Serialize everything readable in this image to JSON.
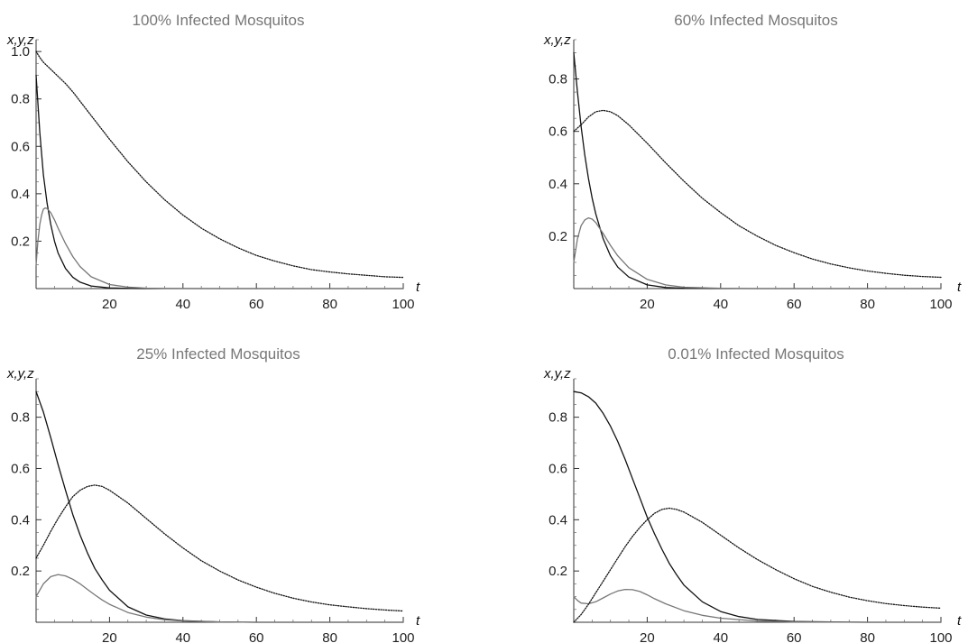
{
  "chart_data": [
    {
      "type": "line",
      "title": "100% Infected Mosquitos",
      "xlabel": "t",
      "ylabel": "x,y,z",
      "xlim": [
        0,
        100
      ],
      "ylim": [
        0,
        1.05
      ],
      "xticks": [
        "20",
        "40",
        "60",
        "80",
        "100"
      ],
      "yticks": [
        "0.2",
        "0.4",
        "0.6",
        "0.8",
        "1.0"
      ],
      "series": [
        {
          "color": "#111111",
          "style": "solid",
          "x": [
            0,
            1,
            2,
            3,
            4,
            5,
            6,
            8,
            10,
            12,
            15,
            20,
            25,
            30,
            40,
            50,
            60,
            70,
            80,
            90,
            100
          ],
          "y": [
            0.9,
            0.66,
            0.48,
            0.36,
            0.27,
            0.2,
            0.15,
            0.085,
            0.048,
            0.027,
            0.011,
            0.0025,
            0.0006,
            0.0001,
            0,
            0,
            0,
            0,
            0,
            0,
            0
          ]
        },
        {
          "color": "#777777",
          "style": "solid",
          "x": [
            0,
            0.5,
            1,
            1.5,
            2,
            2.5,
            3,
            4,
            5,
            6,
            8,
            10,
            12,
            15,
            20,
            25,
            30,
            35,
            40,
            50,
            60,
            80,
            100
          ],
          "y": [
            0.1,
            0.2,
            0.27,
            0.31,
            0.335,
            0.34,
            0.338,
            0.32,
            0.29,
            0.255,
            0.19,
            0.135,
            0.093,
            0.05,
            0.017,
            0.006,
            0.002,
            0.0007,
            0.0002,
            0,
            0,
            0,
            0
          ]
        },
        {
          "color": "#111111",
          "style": "dotted",
          "x": [
            0,
            1,
            2,
            4,
            6,
            8,
            10,
            12,
            15,
            20,
            25,
            30,
            35,
            40,
            45,
            50,
            55,
            60,
            65,
            70,
            75,
            80,
            85,
            90,
            95,
            100
          ],
          "y": [
            1.0,
            0.975,
            0.955,
            0.925,
            0.895,
            0.865,
            0.83,
            0.79,
            0.73,
            0.63,
            0.535,
            0.45,
            0.375,
            0.31,
            0.255,
            0.21,
            0.172,
            0.14,
            0.116,
            0.096,
            0.08,
            0.07,
            0.062,
            0.056,
            0.05,
            0.047
          ]
        }
      ]
    },
    {
      "type": "line",
      "title": "60% Infected Mosquitos",
      "xlabel": "t",
      "ylabel": "x,y,z",
      "xlim": [
        0,
        100
      ],
      "ylim": [
        0,
        0.95
      ],
      "xticks": [
        "20",
        "40",
        "60",
        "80",
        "100"
      ],
      "yticks": [
        "0.2",
        "0.4",
        "0.6",
        "0.8"
      ],
      "series": [
        {
          "color": "#111111",
          "style": "solid",
          "x": [
            0,
            1,
            2,
            3,
            4,
            5,
            6,
            8,
            10,
            12,
            15,
            20,
            25,
            30,
            40,
            50,
            60,
            80,
            100
          ],
          "y": [
            0.9,
            0.75,
            0.62,
            0.51,
            0.42,
            0.345,
            0.285,
            0.19,
            0.125,
            0.082,
            0.044,
            0.014,
            0.004,
            0.0012,
            0.0001,
            0,
            0,
            0,
            0
          ]
        },
        {
          "color": "#777777",
          "style": "solid",
          "x": [
            0,
            1,
            2,
            3,
            4,
            5,
            6,
            8,
            10,
            12,
            15,
            20,
            25,
            30,
            40,
            50,
            60,
            80,
            100
          ],
          "y": [
            0.1,
            0.19,
            0.24,
            0.262,
            0.27,
            0.265,
            0.252,
            0.21,
            0.165,
            0.125,
            0.08,
            0.035,
            0.014,
            0.005,
            0.001,
            0,
            0,
            0,
            0
          ]
        },
        {
          "color": "#111111",
          "style": "dotted",
          "x": [
            0,
            2,
            4,
            6,
            8,
            10,
            12,
            15,
            20,
            25,
            30,
            35,
            40,
            45,
            50,
            55,
            60,
            65,
            70,
            75,
            80,
            85,
            90,
            95,
            100
          ],
          "y": [
            0.6,
            0.625,
            0.655,
            0.675,
            0.68,
            0.675,
            0.66,
            0.625,
            0.555,
            0.48,
            0.41,
            0.345,
            0.29,
            0.24,
            0.2,
            0.165,
            0.137,
            0.113,
            0.094,
            0.079,
            0.067,
            0.058,
            0.051,
            0.046,
            0.043
          ]
        }
      ]
    },
    {
      "type": "line",
      "title": "25% Infected Mosquitos",
      "xlabel": "t",
      "ylabel": "x,y,z",
      "xlim": [
        0,
        100
      ],
      "ylim": [
        0,
        0.95
      ],
      "xticks": [
        "20",
        "40",
        "60",
        "80",
        "100"
      ],
      "yticks": [
        "0.2",
        "0.4",
        "0.6",
        "0.8"
      ],
      "series": [
        {
          "color": "#111111",
          "style": "solid",
          "x": [
            0,
            2,
            4,
            6,
            8,
            10,
            12,
            14,
            16,
            18,
            20,
            25,
            30,
            35,
            40,
            50,
            60,
            80,
            100
          ],
          "y": [
            0.9,
            0.82,
            0.72,
            0.615,
            0.515,
            0.42,
            0.34,
            0.27,
            0.21,
            0.165,
            0.125,
            0.06,
            0.028,
            0.013,
            0.006,
            0.001,
            0,
            0,
            0
          ]
        },
        {
          "color": "#777777",
          "style": "solid",
          "x": [
            0,
            2,
            4,
            6,
            8,
            10,
            12,
            14,
            16,
            18,
            20,
            25,
            30,
            35,
            40,
            50,
            60,
            80,
            100
          ],
          "y": [
            0.1,
            0.15,
            0.178,
            0.186,
            0.181,
            0.168,
            0.15,
            0.128,
            0.107,
            0.087,
            0.07,
            0.038,
            0.02,
            0.01,
            0.005,
            0.001,
            0,
            0,
            0
          ]
        },
        {
          "color": "#111111",
          "style": "dotted",
          "x": [
            0,
            2,
            4,
            6,
            8,
            10,
            12,
            14,
            16,
            18,
            20,
            25,
            30,
            35,
            40,
            45,
            50,
            55,
            60,
            65,
            70,
            75,
            80,
            85,
            90,
            95,
            100
          ],
          "y": [
            0.25,
            0.3,
            0.355,
            0.405,
            0.45,
            0.49,
            0.515,
            0.53,
            0.535,
            0.53,
            0.515,
            0.465,
            0.405,
            0.345,
            0.29,
            0.24,
            0.2,
            0.165,
            0.137,
            0.113,
            0.094,
            0.079,
            0.068,
            0.06,
            0.053,
            0.048,
            0.044
          ]
        }
      ]
    },
    {
      "type": "line",
      "title": "0.01% Infected Mosquitos",
      "xlabel": "t",
      "ylabel": "x,y,z",
      "xlim": [
        0,
        100
      ],
      "ylim": [
        0,
        0.95
      ],
      "xticks": [
        "20",
        "40",
        "60",
        "80",
        "100"
      ],
      "yticks": [
        "0.2",
        "0.4",
        "0.6",
        "0.8"
      ],
      "series": [
        {
          "color": "#111111",
          "style": "solid",
          "x": [
            0,
            2,
            4,
            6,
            8,
            10,
            12,
            14,
            16,
            18,
            20,
            22,
            24,
            26,
            28,
            30,
            35,
            40,
            45,
            50,
            60,
            70,
            80,
            100
          ],
          "y": [
            0.9,
            0.895,
            0.88,
            0.855,
            0.815,
            0.765,
            0.705,
            0.635,
            0.56,
            0.485,
            0.41,
            0.345,
            0.285,
            0.23,
            0.185,
            0.145,
            0.08,
            0.042,
            0.022,
            0.011,
            0.003,
            0.001,
            0,
            0
          ]
        },
        {
          "color": "#777777",
          "style": "solid",
          "x": [
            0,
            1,
            2,
            4,
            6,
            8,
            10,
            12,
            14,
            16,
            18,
            20,
            22,
            25,
            30,
            35,
            40,
            50,
            60,
            80,
            100
          ],
          "y": [
            0.1,
            0.085,
            0.075,
            0.072,
            0.08,
            0.095,
            0.11,
            0.122,
            0.128,
            0.127,
            0.12,
            0.107,
            0.092,
            0.072,
            0.045,
            0.027,
            0.016,
            0.005,
            0.001,
            0,
            0
          ]
        },
        {
          "color": "#111111",
          "style": "dotted",
          "x": [
            0,
            2,
            4,
            6,
            8,
            10,
            12,
            14,
            16,
            18,
            20,
            22,
            24,
            26,
            28,
            30,
            35,
            40,
            45,
            50,
            55,
            60,
            65,
            70,
            75,
            80,
            85,
            90,
            95,
            100
          ],
          "y": [
            0.0001,
            0.03,
            0.07,
            0.115,
            0.16,
            0.205,
            0.25,
            0.295,
            0.335,
            0.37,
            0.4,
            0.425,
            0.44,
            0.445,
            0.44,
            0.43,
            0.39,
            0.34,
            0.29,
            0.245,
            0.205,
            0.17,
            0.14,
            0.117,
            0.098,
            0.084,
            0.073,
            0.065,
            0.059,
            0.055
          ]
        }
      ]
    }
  ]
}
